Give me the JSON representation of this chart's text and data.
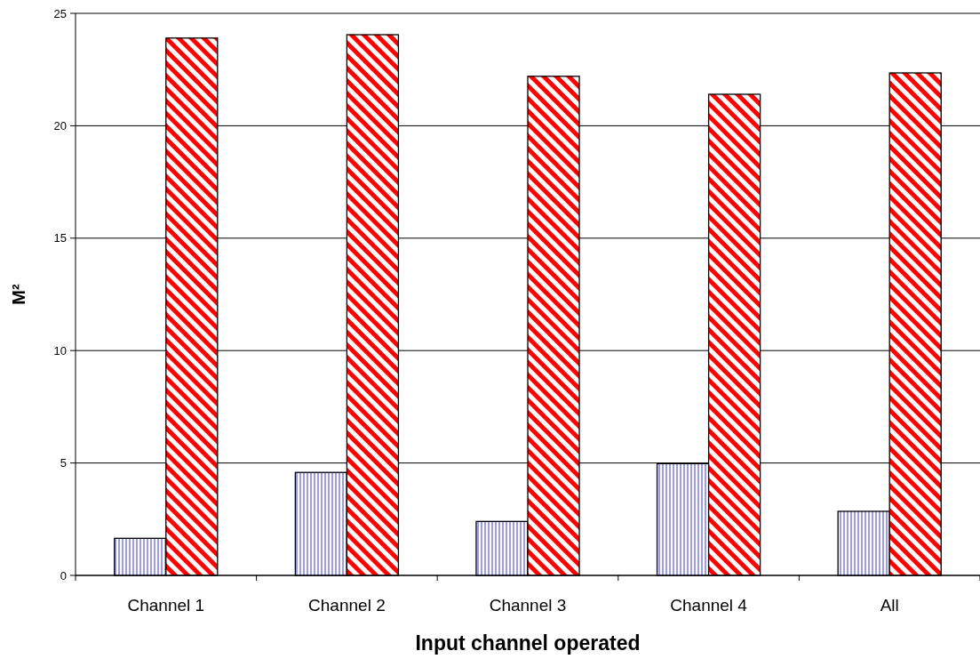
{
  "chart_data": {
    "type": "bar",
    "xlabel": "Input channel operated",
    "ylabel": "M²",
    "categories": [
      "Channel 1",
      "Channel 2",
      "Channel 3",
      "Channel 4",
      "All"
    ],
    "series": [
      {
        "color": "#9999ff",
        "values": [
          1.65,
          4.58,
          2.4,
          4.97,
          2.85
        ]
      },
      {
        "color": "#ff0000",
        "values": [
          23.9,
          24.05,
          22.2,
          21.4,
          22.35
        ]
      }
    ],
    "ylim": [
      0,
      25
    ],
    "yticks": [
      0,
      5,
      10,
      15,
      20,
      25
    ],
    "grid": "y"
  }
}
